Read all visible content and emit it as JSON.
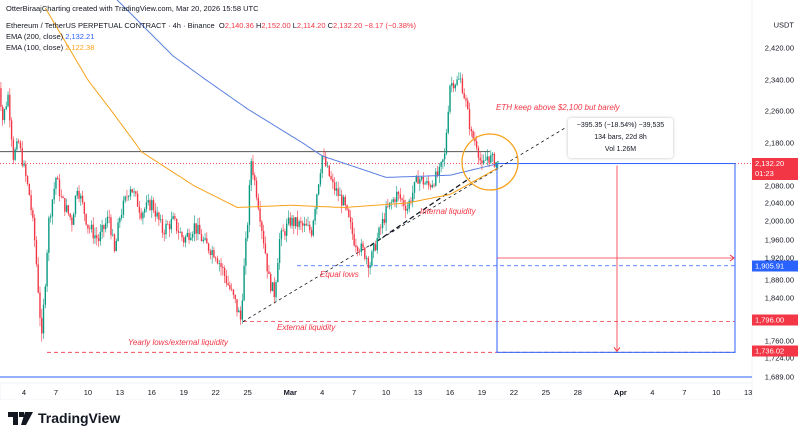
{
  "header": {
    "attribution": "OtterBiraajCharting created with TradingView.com, Mar 20, 2026 15:58 UTC",
    "symbol": "Ethereum / TetherUS PERPETUAL CONTRACT · 4h · Binance",
    "o_label": "O",
    "o": "2,140.36",
    "h_label": "H",
    "h": "2,152.00",
    "l_label": "L",
    "l": "2,114.20",
    "c_label": "C",
    "c": "2,132.20",
    "change": "−8.17 (−0.38%)",
    "ema200_label": "EMA (200, close)",
    "ema200": "2,132.21",
    "ema100_label": "EMA (100, close)",
    "ema100": "2,122.38"
  },
  "currency": "USDT",
  "colors": {
    "up": "#089981",
    "down": "#f23645",
    "ema200": "#5b7fe0",
    "ema100": "#f7a21b",
    "annotation": "#f23645",
    "measure": "#2962ff"
  },
  "price_axis": [
    {
      "v": "2,420.00",
      "p": 2420
    },
    {
      "v": "2,340.00",
      "p": 2340
    },
    {
      "v": "2,260.00",
      "p": 2260
    },
    {
      "v": "2,180.00",
      "p": 2180
    },
    {
      "v": "2,080.00",
      "p": 2080
    },
    {
      "v": "2,040.00",
      "p": 2040
    },
    {
      "v": "2,000.00",
      "p": 2000
    },
    {
      "v": "1,960.00",
      "p": 1960
    },
    {
      "v": "1,920.00",
      "p": 1920
    },
    {
      "v": "1,880.00",
      "p": 1880
    },
    {
      "v": "1,840.00",
      "p": 1840
    },
    {
      "v": "1,760.00",
      "p": 1760
    },
    {
      "v": "1,724.00",
      "p": 1724
    },
    {
      "v": "1,689.00",
      "p": 1689
    }
  ],
  "price_tags": {
    "last": "2,132.20",
    "countdown": "01:23",
    "equal_lows": "1,905.91",
    "external": "1,796.00",
    "yearly": "1,736.02"
  },
  "date_axis": [
    {
      "t": "4",
      "d": "2026-02-04"
    },
    {
      "t": "7",
      "d": "2026-02-07"
    },
    {
      "t": "10",
      "d": "2026-02-10"
    },
    {
      "t": "13",
      "d": "2026-02-13"
    },
    {
      "t": "16",
      "d": "2026-02-16"
    },
    {
      "t": "19",
      "d": "2026-02-19"
    },
    {
      "t": "22",
      "d": "2026-02-22"
    },
    {
      "t": "25",
      "d": "2026-02-25"
    },
    {
      "t": "Mar",
      "d": "2026-03-01"
    },
    {
      "t": "4",
      "d": "2026-03-04"
    },
    {
      "t": "7",
      "d": "2026-03-07"
    },
    {
      "t": "10",
      "d": "2026-03-10"
    },
    {
      "t": "13",
      "d": "2026-03-13"
    },
    {
      "t": "16",
      "d": "2026-03-16"
    },
    {
      "t": "19",
      "d": "2026-03-19"
    },
    {
      "t": "22",
      "d": "2026-03-22"
    },
    {
      "t": "25",
      "d": "2026-03-25"
    },
    {
      "t": "28",
      "d": "2026-03-28"
    },
    {
      "t": "Apr",
      "d": "2026-04-01"
    },
    {
      "t": "4",
      "d": "2026-04-04"
    },
    {
      "t": "7",
      "d": "2026-04-07"
    },
    {
      "t": "10",
      "d": "2026-04-10"
    },
    {
      "t": "13",
      "d": "2026-04-13"
    }
  ],
  "chart_data": {
    "type": "candlestick",
    "interval": "4h",
    "y_scale": "log",
    "price_path": [
      [
        "2026-02-01T12",
        2370
      ],
      [
        "2026-02-02T00",
        2240
      ],
      [
        "2026-02-02T12",
        2300
      ],
      [
        "2026-02-03T00",
        2150
      ],
      [
        "2026-02-03T12",
        2180
      ],
      [
        "2026-02-04T12",
        2060
      ],
      [
        "2026-02-05T00",
        1960
      ],
      [
        "2026-02-05T16",
        1760
      ],
      [
        "2026-02-06T08",
        2000
      ],
      [
        "2026-02-07T00",
        2100
      ],
      [
        "2026-02-07T12",
        2050
      ],
      [
        "2026-02-08T12",
        2000
      ],
      [
        "2026-02-09T00",
        2080
      ],
      [
        "2026-02-10T00",
        1990
      ],
      [
        "2026-02-11T00",
        1960
      ],
      [
        "2026-02-12T00",
        2010
      ],
      [
        "2026-02-12T12",
        1930
      ],
      [
        "2026-02-13T00",
        2010
      ],
      [
        "2026-02-14T00",
        2080
      ],
      [
        "2026-02-15T00",
        2020
      ],
      [
        "2026-02-16T00",
        2040
      ],
      [
        "2026-02-17T00",
        1980
      ],
      [
        "2026-02-18T00",
        2000
      ],
      [
        "2026-02-19T00",
        1960
      ],
      [
        "2026-02-20T00",
        1990
      ],
      [
        "2026-02-21T00",
        1950
      ],
      [
        "2026-02-22T00",
        1930
      ],
      [
        "2026-02-23T00",
        1880
      ],
      [
        "2026-02-24T08",
        1800
      ],
      [
        "2026-02-25T00",
        2000
      ],
      [
        "2026-02-25T08",
        2140
      ],
      [
        "2026-02-26T00",
        2040
      ],
      [
        "2026-02-27T00",
        1880
      ],
      [
        "2026-02-27T12",
        1850
      ],
      [
        "2026-02-28T00",
        1960
      ],
      [
        "2026-03-01T00",
        2000
      ],
      [
        "2026-03-02T00",
        1990
      ],
      [
        "2026-03-03T00",
        1980
      ],
      [
        "2026-03-04T00",
        2150
      ],
      [
        "2026-03-05T00",
        2080
      ],
      [
        "2026-03-06T00",
        2040
      ],
      [
        "2026-03-07T00",
        1960
      ],
      [
        "2026-03-08T00",
        1930
      ],
      [
        "2026-03-08T12",
        1910
      ],
      [
        "2026-03-09T00",
        1950
      ],
      [
        "2026-03-10T00",
        2020
      ],
      [
        "2026-03-11T00",
        2060
      ],
      [
        "2026-03-12T00",
        2030
      ],
      [
        "2026-03-13T00",
        2100
      ],
      [
        "2026-03-14T00",
        2080
      ],
      [
        "2026-03-15T00",
        2110
      ],
      [
        "2026-03-15T12",
        2150
      ],
      [
        "2026-03-16T00",
        2330
      ],
      [
        "2026-03-17T00",
        2340
      ],
      [
        "2026-03-17T12",
        2280
      ],
      [
        "2026-03-18T00",
        2200
      ],
      [
        "2026-03-18T12",
        2180
      ],
      [
        "2026-03-19T00",
        2120
      ],
      [
        "2026-03-19T12",
        2150
      ],
      [
        "2026-03-20T12",
        2132
      ]
    ],
    "ema200": [
      [
        "2026-02-12T00",
        2560
      ],
      [
        "2026-02-18T00",
        2400
      ],
      [
        "2026-02-25T00",
        2265
      ],
      [
        "2026-03-04T00",
        2150
      ],
      [
        "2026-03-10T00",
        2100
      ],
      [
        "2026-03-16T00",
        2105
      ],
      [
        "2026-03-20T12",
        2132
      ]
    ],
    "ema100": [
      [
        "2026-02-06T00",
        2520
      ],
      [
        "2026-02-10T00",
        2340
      ],
      [
        "2026-02-15T00",
        2160
      ],
      [
        "2026-02-20T00",
        2080
      ],
      [
        "2026-02-24T00",
        2030
      ],
      [
        "2026-03-01T00",
        2035
      ],
      [
        "2026-03-06T00",
        2030
      ],
      [
        "2026-03-12T00",
        2040
      ],
      [
        "2026-03-16T00",
        2060
      ],
      [
        "2026-03-20T12",
        2122
      ]
    ],
    "levels": {
      "resistance": 2160,
      "equal_lows": 1905.91,
      "external_liquidity": 1796,
      "yearly_lows": 1736.02,
      "bottom": 1689
    }
  },
  "annotations": {
    "main": "ETH keep above $2,100 but barely",
    "internal": "Internal liquidity",
    "equal_lows": "Equal lows",
    "external": "External liquidity",
    "yearly": "Yearly lows/external liquidity"
  },
  "measure": {
    "line1": "−395.35 (−18.54%) −39,535",
    "line2": "134 bars, 22d 8h",
    "line3": "Vol 1.26M"
  },
  "brand": "TradingView"
}
